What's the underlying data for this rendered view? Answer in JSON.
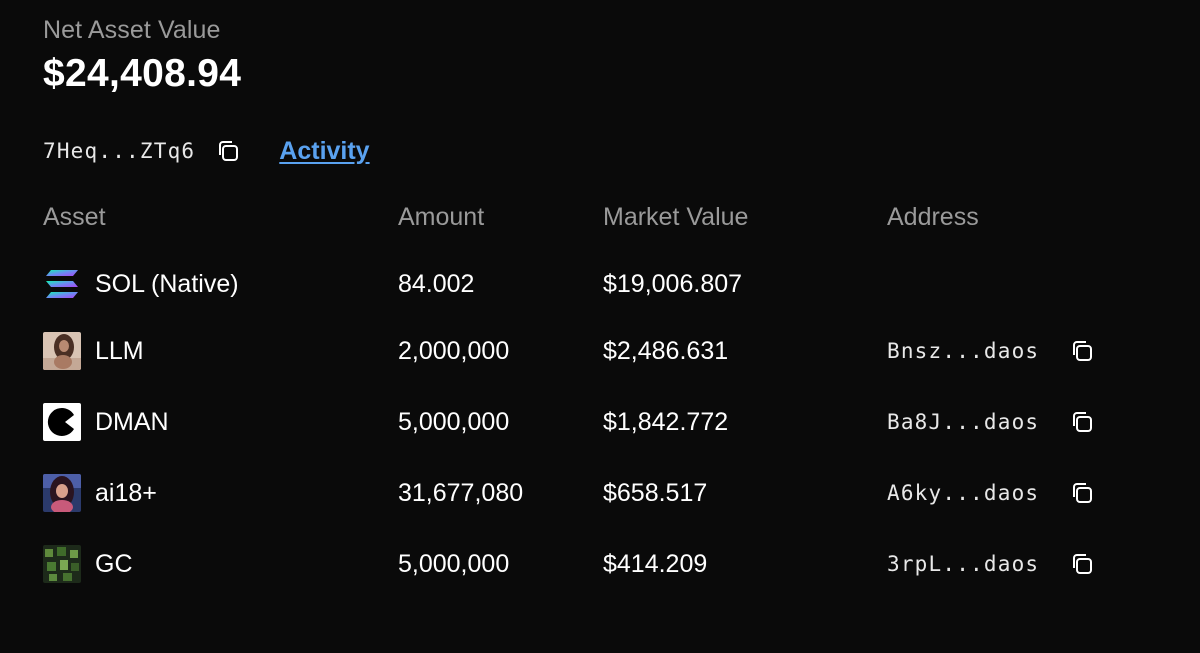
{
  "summary": {
    "label": "Net Asset Value",
    "value": "$24,408.94"
  },
  "wallet": {
    "address_short": "7Heq...ZTq6",
    "copy_icon": "copy-icon",
    "activity_label": "Activity"
  },
  "table": {
    "headers": {
      "asset": "Asset",
      "amount": "Amount",
      "market_value": "Market Value",
      "address": "Address"
    },
    "rows": [
      {
        "name": "SOL (Native)",
        "amount": "84.002",
        "market_value": "$19,006.807",
        "address": "",
        "icon": "solana-logo-icon"
      },
      {
        "name": "LLM",
        "amount": "2,000,000",
        "market_value": "$2,486.631",
        "address": "Bnsz...daos",
        "icon": "llm-token-icon"
      },
      {
        "name": "DMAN",
        "amount": "5,000,000",
        "market_value": "$1,842.772",
        "address": "Ba8J...daos",
        "icon": "dman-token-icon"
      },
      {
        "name": "ai18+",
        "amount": "31,677,080",
        "market_value": "$658.517",
        "address": "A6ky...daos",
        "icon": "ai18-token-icon"
      },
      {
        "name": "GC",
        "amount": "5,000,000",
        "market_value": "$414.209",
        "address": "3rpL...daos",
        "icon": "gc-token-icon"
      }
    ]
  },
  "colors": {
    "background": "#0a0a0a",
    "muted_text": "#9a9a9a",
    "link": "#5aa2f0"
  }
}
